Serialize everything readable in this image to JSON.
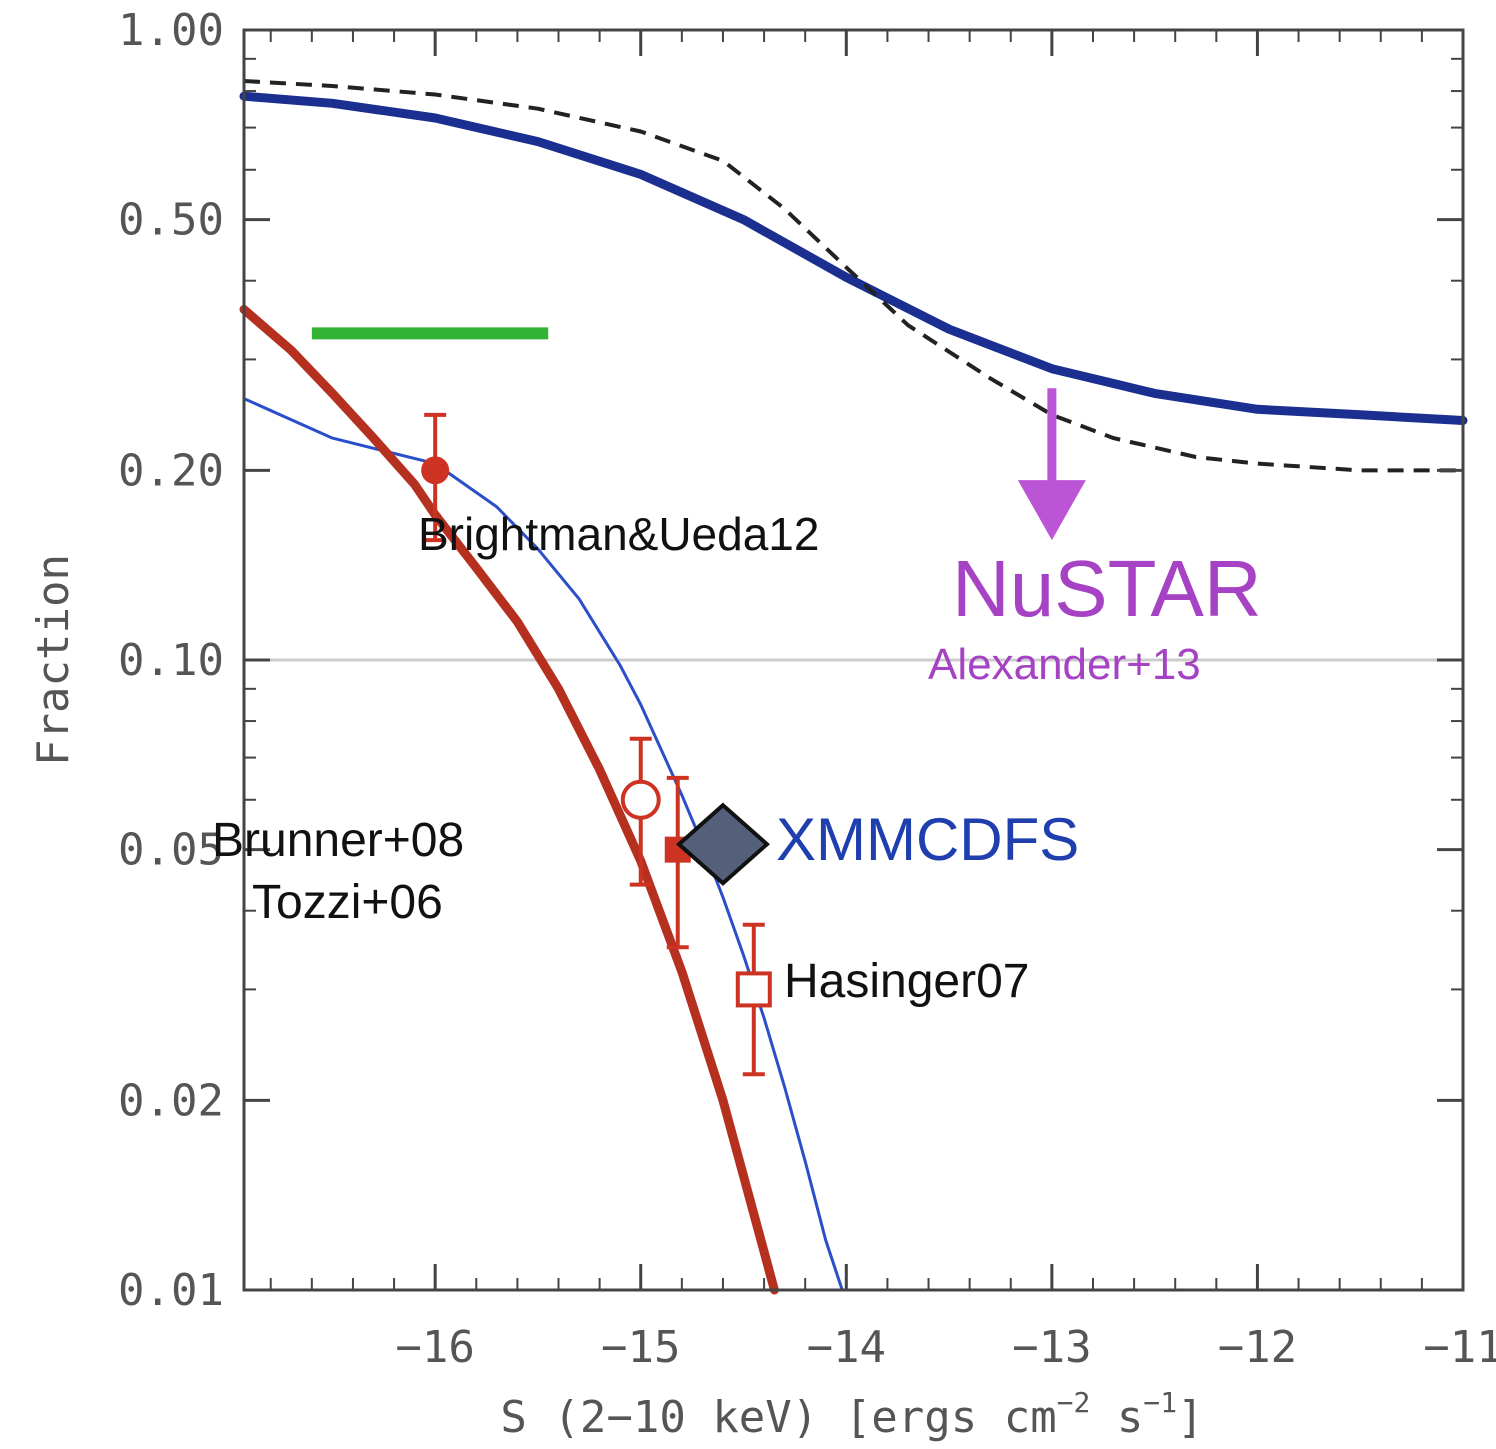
{
  "chart_data": {
    "type": "line",
    "title": "",
    "xlabel": "S (2−10 keV) [ergs cm",
    "xlabel_exp1": "−2",
    "xlabel_mid": " s",
    "xlabel_exp2": "−1",
    "xlabel_end": "]",
    "ylabel": "Fraction",
    "xlim": [
      -16.93,
      -11.0
    ],
    "ylim": [
      0.01,
      1.0
    ],
    "yscale": "log",
    "grid": false,
    "x_ticks": [
      -16,
      -15,
      -14,
      -13,
      -12,
      -11
    ],
    "x_tick_labels": [
      "−16",
      "−15",
      "−14",
      "−13",
      "−12",
      "−11"
    ],
    "y_ticks": [
      0.01,
      0.02,
      0.05,
      0.1,
      0.2,
      0.5,
      1.0
    ],
    "y_tick_labels": [
      "0.01",
      "0.02",
      "0.05",
      "0.10",
      "0.20",
      "0.50",
      "1.00"
    ],
    "reference_line": {
      "y": 0.1,
      "color": "#cccccc"
    },
    "series": [
      {
        "style": "solid-thick",
        "color": "#1a2f8f",
        "x": [
          -16.93,
          -16.5,
          -16.0,
          -15.5,
          -15.0,
          -14.5,
          -14.0,
          -13.5,
          -13.0,
          -12.5,
          -12.0,
          -11.5,
          -11.0
        ],
        "y": [
          0.785,
          0.765,
          0.725,
          0.665,
          0.59,
          0.5,
          0.405,
          0.335,
          0.29,
          0.265,
          0.25,
          0.245,
          0.24
        ]
      },
      {
        "style": "dashed",
        "color": "#222222",
        "x": [
          -16.93,
          -16.5,
          -16.0,
          -15.5,
          -15.0,
          -14.6,
          -14.3,
          -14.0,
          -13.7,
          -13.3,
          -13.0,
          -12.7,
          -12.3,
          -12.0,
          -11.5,
          -11.0
        ],
        "y": [
          0.83,
          0.815,
          0.79,
          0.75,
          0.69,
          0.62,
          0.52,
          0.42,
          0.34,
          0.28,
          0.245,
          0.225,
          0.21,
          0.205,
          0.2,
          0.2
        ]
      },
      {
        "style": "solid-thin",
        "color": "#2a4fc8",
        "x": [
          -16.93,
          -16.5,
          -16.0,
          -15.7,
          -15.5,
          -15.3,
          -15.1,
          -15.0,
          -14.9,
          -14.8,
          -14.7,
          -14.6,
          -14.5,
          -14.4,
          -14.3,
          -14.2,
          -14.1,
          -14.02
        ],
        "y": [
          0.26,
          0.225,
          0.205,
          0.175,
          0.15,
          0.125,
          0.098,
          0.085,
          0.072,
          0.061,
          0.051,
          0.042,
          0.034,
          0.027,
          0.021,
          0.016,
          0.012,
          0.01
        ]
      },
      {
        "style": "solid-thick",
        "color": "#b5301f",
        "x": [
          -16.93,
          -16.7,
          -16.5,
          -16.3,
          -16.1,
          -16.0,
          -15.8,
          -15.6,
          -15.4,
          -15.2,
          -15.0,
          -14.8,
          -14.6,
          -14.4,
          -14.35
        ],
        "y": [
          0.36,
          0.31,
          0.265,
          0.225,
          0.19,
          0.17,
          0.14,
          0.115,
          0.09,
          0.067,
          0.048,
          0.032,
          0.02,
          0.0115,
          0.01
        ]
      }
    ],
    "points": [
      {
        "label": "Brightman&Ueda12",
        "x": -16.0,
        "y": 0.2,
        "err_lo": 0.155,
        "err_hi": 0.245,
        "marker": "filled-circle",
        "color": "#cc3322"
      },
      {
        "label": "Brunner+08",
        "x": -15.0,
        "y": 0.06,
        "err_lo": 0.044,
        "err_hi": 0.075,
        "marker": "open-circle",
        "color": "#cc3322"
      },
      {
        "label": "Tozzi+06",
        "x": -14.82,
        "y": 0.05,
        "err_lo": 0.035,
        "err_hi": 0.065,
        "marker": "filled-square",
        "color": "#cc3322"
      },
      {
        "label": "Hasinger07",
        "x": -14.45,
        "y": 0.03,
        "err_lo": 0.022,
        "err_hi": 0.038,
        "marker": "open-square",
        "color": "#cc3322"
      },
      {
        "label": "XMMCDFS",
        "x": -14.6,
        "y": 0.051,
        "marker": "diamond",
        "color": "#54607a"
      }
    ],
    "upper_limit": {
      "label": "NuSTAR",
      "sub_label": "Alexander+13",
      "x": -13.0,
      "y_from": 0.27,
      "y_to": 0.155,
      "color": "#bb55d5"
    },
    "range_bar": {
      "x_from": -16.6,
      "x_to": -15.45,
      "y": 0.33,
      "color": "#33b333"
    },
    "annotations": {
      "brightman": "Brightman&Ueda12",
      "brunner": "Brunner+08",
      "tozzi": "Tozzi+06",
      "hasinger": "Hasinger07",
      "xmmcdfs": "XMMCDFS",
      "nustar": "NuSTAR",
      "alexander": "Alexander+13"
    }
  }
}
